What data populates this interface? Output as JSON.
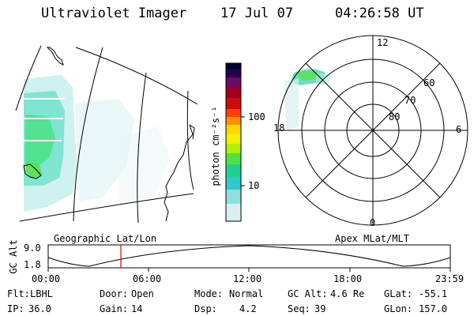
{
  "header": {
    "title": "Ultraviolet Imager",
    "date": "17 Jul 07",
    "time": "04:26:58 UT"
  },
  "colorbar": {
    "label": "photon cm⁻²s⁻¹",
    "ticks": [
      "100",
      "10"
    ],
    "colors": [
      "#000030",
      "#2a0050",
      "#6a0a6a",
      "#a0001e",
      "#d00a0a",
      "#ff4000",
      "#ff9000",
      "#ffd700",
      "#f0f000",
      "#b0f000",
      "#50e040",
      "#20d090",
      "#30c8c8",
      "#90dede",
      "#d8f0f0"
    ]
  },
  "polar": {
    "mlt_labels": {
      "top": "12",
      "right": "6",
      "bottom": "0",
      "left": "18"
    },
    "lat_labels": [
      "60",
      "70",
      "80"
    ]
  },
  "panel_labels": {
    "left": "Geographic Lat/Lon",
    "right": "Apex MLat/MLT"
  },
  "alt_plot": {
    "ylabel": "GC Alt",
    "y_ticks": [
      "9.0",
      "1.8"
    ],
    "x_ticks": [
      "00:00",
      "06:00",
      "12:00",
      "18:00",
      "23:59"
    ],
    "marker_time": "04:26:58"
  },
  "footer": {
    "flt_label": "Flt:",
    "flt_value": "LBHL",
    "ip_label": "IP:",
    "ip_value": "36.0",
    "door_label": "Door:",
    "door_value": "Open",
    "gain_label": "Gain:",
    "gain_value": "14",
    "mode_label": "Mode:",
    "mode_value": "Normal",
    "dsp_label": "Dsp:",
    "dsp_value": "4.2",
    "gcalt_label": "GC Alt:",
    "gcalt_value": "4.6 Re",
    "seq_label": "Seq:",
    "seq_value": "39",
    "glat_label": "GLat:",
    "glat_value": "-55.1",
    "glon_label": "GLon:",
    "glon_value": "157.0"
  }
}
